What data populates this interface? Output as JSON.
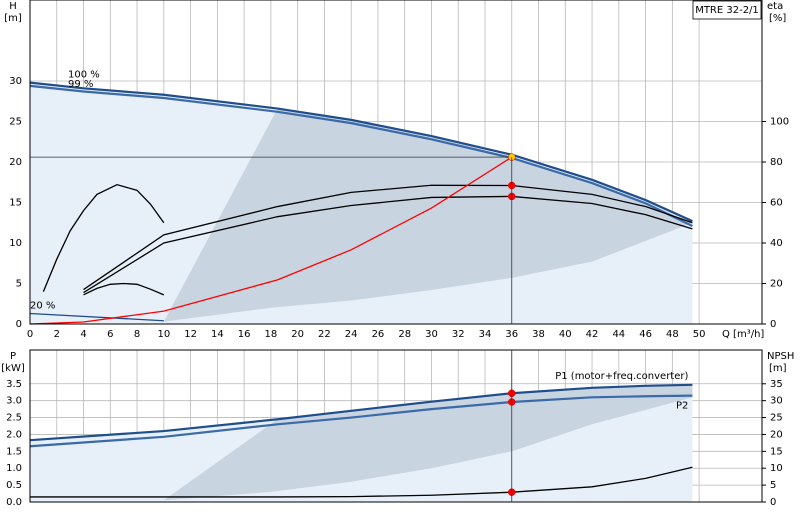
{
  "chart_data": [
    {
      "type": "line",
      "title": "MTRE 32-2/1",
      "xlabel": "Q [m³/h]",
      "ylabel": "H",
      "yunit": "[m]",
      "y2label": "eta",
      "y2unit": "[%]",
      "x": [
        0,
        4,
        10,
        18.5,
        24,
        30,
        36,
        42,
        46,
        49.5
      ],
      "xlim": [
        0,
        54.7
      ],
      "xticks": [
        0,
        2,
        4,
        6,
        8,
        10,
        12,
        14,
        16,
        18,
        20,
        22,
        24,
        26,
        28,
        30,
        32,
        34,
        36,
        38,
        40,
        42,
        44,
        46,
        48,
        50
      ],
      "ylim": [
        0,
        40
      ],
      "yticks": [
        0,
        5,
        10,
        15,
        20,
        25,
        30
      ],
      "y2lim": [
        0,
        160
      ],
      "y2ticks": [
        0,
        20,
        40,
        60,
        80,
        100
      ],
      "grid": true,
      "marker_x": 36,
      "region": {
        "color": "#c9d4e1",
        "x": [
          10,
          18.5,
          24,
          30,
          36,
          42,
          46,
          49.5,
          42,
          36,
          30,
          24,
          18,
          10
        ],
        "values": [
          0.3,
          26.6,
          25.2,
          23.2,
          20.6,
          17.5,
          15,
          12.5,
          7.7,
          5.7,
          4.2,
          2.9,
          2,
          0.3
        ]
      },
      "series": [
        {
          "name": "100 %",
          "color": "#1f4e8c",
          "values": [
            29.8,
            29.1,
            28.3,
            26.6,
            25.2,
            23.2,
            20.9,
            17.8,
            15.3,
            12.7
          ]
        },
        {
          "name": "99 %",
          "color": "#3a6aa8",
          "values": [
            29.4,
            28.7,
            27.9,
            26.2,
            24.8,
            22.8,
            20.5,
            17.4,
            14.9,
            12.1
          ]
        },
        {
          "name": "20 %",
          "color": "#1f4e8c",
          "x": [
            0,
            10
          ],
          "values": [
            1.3,
            0.4
          ]
        },
        {
          "axis": "y2",
          "color": "#000000",
          "marker_color": "#ff0000",
          "values": [
            null,
            17,
            44,
            58,
            65,
            68.5,
            68.4,
            64,
            58,
            50
          ]
        },
        {
          "axis": "y2",
          "color": "#000000",
          "marker_color": "#ff0000",
          "values": [
            null,
            15.5,
            40,
            53,
            58.5,
            62.5,
            63,
            59.5,
            54,
            47
          ]
        },
        {
          "color": "#000000",
          "x": [
            1,
            2,
            3,
            4,
            5,
            6.5,
            8,
            9,
            10
          ],
          "values": [
            4,
            8,
            11.5,
            14,
            16,
            17.2,
            16.5,
            14.8,
            12.5
          ]
        },
        {
          "color": "#000000",
          "x": [
            4,
            5,
            6,
            7,
            8,
            9,
            10
          ],
          "values": [
            3.6,
            4.4,
            4.9,
            5,
            4.9,
            4.3,
            3.6
          ]
        },
        {
          "color": "#ff0000",
          "marker_color": "#ffcc00",
          "crosshair": true,
          "values": [
            0,
            0.25,
            1.59,
            5.45,
            9.16,
            14.31,
            20.6,
            null,
            null,
            null
          ]
        }
      ]
    },
    {
      "type": "line",
      "ylabel": "P",
      "yunit": "[kW]",
      "y2label": "NPSH",
      "y2unit": "[m]",
      "x": [
        0,
        10,
        18.5,
        24,
        30,
        36,
        42,
        46,
        49.5
      ],
      "xlim": [
        0,
        54.7
      ],
      "ylim": [
        0,
        4.5
      ],
      "yticks": [
        {
          "value": 0,
          "label": "0.0"
        },
        0.5,
        {
          "value": 1,
          "label": "1.0"
        },
        1.5,
        {
          "value": 2,
          "label": "2.0"
        },
        2.5,
        {
          "value": 3,
          "label": "3.0"
        },
        3.5
      ],
      "y2lim": [
        0,
        45
      ],
      "y2ticks": [
        0,
        5,
        10,
        15,
        20,
        25,
        30,
        35
      ],
      "grid": true,
      "marker_x": 36,
      "region": {
        "color": "#c9d4e1",
        "x": [
          10,
          18.5,
          24,
          30,
          36,
          42,
          49.5,
          49.5,
          42,
          36,
          30,
          24,
          18,
          10
        ],
        "values": [
          0.05,
          2.45,
          2.7,
          2.97,
          3.22,
          3.38,
          3.47,
          3.1,
          2.3,
          1.5,
          1.0,
          0.6,
          0.3,
          0.05
        ]
      },
      "series": [
        {
          "name": "P1 (motor+freq.converter)",
          "color": "#1f4e8c",
          "marker_color": "#ff0000",
          "values": [
            1.83,
            2.1,
            2.45,
            2.7,
            2.97,
            3.22,
            3.38,
            3.44,
            3.47
          ]
        },
        {
          "name": "P2",
          "color": "#3a6aa8",
          "marker_color": "#ff0000",
          "values": [
            1.65,
            1.93,
            2.3,
            2.5,
            2.75,
            2.96,
            3.1,
            3.13,
            3.15
          ]
        },
        {
          "axis": "y2",
          "color": "#000000",
          "marker_color": "#ff0000",
          "values": [
            1.5,
            1.5,
            1.5,
            1.6,
            2,
            2.9,
            4.5,
            7,
            10.3
          ]
        }
      ]
    }
  ]
}
